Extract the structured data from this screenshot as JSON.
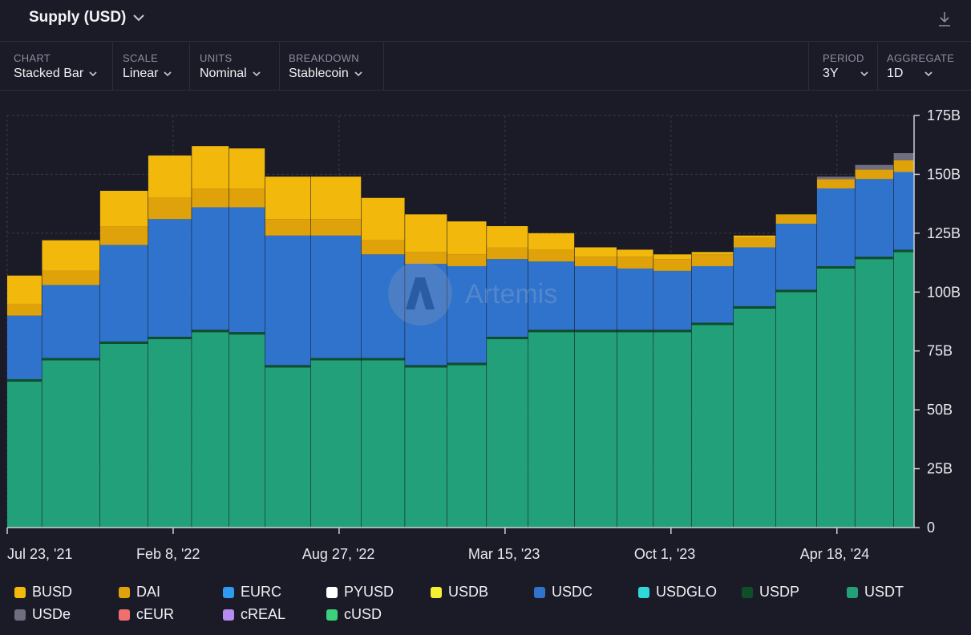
{
  "header": {
    "title": "Supply (USD)"
  },
  "controls": {
    "chart": {
      "label": "CHART",
      "value": "Stacked Bar"
    },
    "scale": {
      "label": "SCALE",
      "value": "Linear"
    },
    "units": {
      "label": "UNITS",
      "value": "Nominal"
    },
    "breakdown": {
      "label": "BREAKDOWN",
      "value": "Stablecoin"
    },
    "period": {
      "label": "PERIOD",
      "value": "3Y"
    },
    "aggregate": {
      "label": "AGGREGATE",
      "value": "1D"
    }
  },
  "watermark": "Artemis",
  "colors": {
    "BUSD": "#f2b90c",
    "DAI": "#e0a20b",
    "EURC": "#2f9bf0",
    "PYUSD": "#ffffff",
    "USDB": "#f5f032",
    "USDC": "#2f73cc",
    "USDGLO": "#2fd9d9",
    "USDP": "#0e4f2a",
    "USDT": "#22a079",
    "USDe": "#6e6e80",
    "cEUR": "#f07070",
    "cREAL": "#b58cf0",
    "cUSD": "#3ccf7c"
  },
  "chart_data": {
    "type": "bar",
    "stacked": true,
    "x_tick_labels": [
      "Jul 23, '21",
      "Feb 8, '22",
      "Aug 27, '22",
      "Mar 15, '23",
      "Oct 1, '23",
      "Apr 18, '24"
    ],
    "y_tick_labels": [
      "0",
      "25B",
      "50B",
      "75B",
      "100B",
      "125B",
      "150B",
      "175B"
    ],
    "ylim": [
      0,
      175
    ],
    "grid": true,
    "legend_position": "bottom",
    "x": [
      "2021-07-23",
      "2021-10-15",
      "2021-12-10",
      "2022-02-08",
      "2022-03-25",
      "2022-05-09",
      "2022-06-20",
      "2022-08-27",
      "2022-10-20",
      "2022-12-10",
      "2023-01-30",
      "2023-03-15",
      "2023-05-10",
      "2023-07-05",
      "2023-08-20",
      "2023-10-01",
      "2023-11-20",
      "2024-01-10",
      "2024-03-01",
      "2024-04-18",
      "2024-06-01",
      "2024-07-20"
    ],
    "series": [
      {
        "name": "USDT",
        "values": [
          62,
          71,
          78,
          80,
          83,
          82,
          68,
          71,
          71,
          68,
          69,
          80,
          83,
          83,
          83,
          83,
          86,
          93,
          100,
          110,
          114,
          117
        ]
      },
      {
        "name": "USDP",
        "values": [
          1,
          1,
          1,
          1,
          1,
          1,
          1,
          1,
          1,
          1,
          1,
          1,
          1,
          1,
          1,
          1,
          1,
          1,
          1,
          1,
          1,
          1
        ]
      },
      {
        "name": "USDC",
        "values": [
          27,
          31,
          41,
          50,
          52,
          53,
          55,
          52,
          44,
          43,
          41,
          33,
          29,
          27,
          26,
          25,
          24,
          25,
          28,
          33,
          33,
          33
        ]
      },
      {
        "name": "DAI",
        "values": [
          5,
          6,
          8,
          9,
          8,
          8,
          7,
          7,
          6,
          5,
          5,
          5,
          5,
          4,
          5,
          5,
          5,
          4,
          4,
          4,
          4,
          5
        ]
      },
      {
        "name": "BUSD",
        "values": [
          12,
          13,
          15,
          18,
          18,
          17,
          18,
          18,
          18,
          16,
          14,
          9,
          7,
          4,
          3,
          2,
          1,
          1,
          0,
          0,
          0,
          0
        ]
      },
      {
        "name": "USDe",
        "values": [
          0,
          0,
          0,
          0,
          0,
          0,
          0,
          0,
          0,
          0,
          0,
          0,
          0,
          0,
          0,
          0,
          0,
          0,
          0,
          1,
          2,
          3
        ]
      }
    ],
    "legend": [
      "BUSD",
      "DAI",
      "EURC",
      "PYUSD",
      "USDB",
      "USDC",
      "USDGLO",
      "USDP",
      "USDT",
      "USDe",
      "cEUR",
      "cREAL",
      "cUSD"
    ]
  }
}
